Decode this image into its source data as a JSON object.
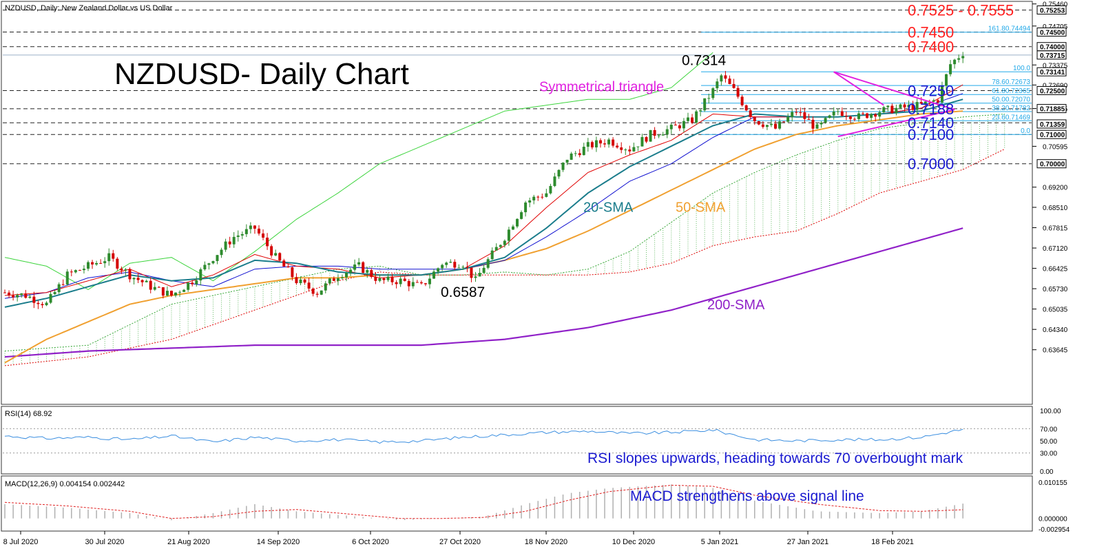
{
  "header": {
    "symbol_info": "NZDUSD, Daily:  New Zealand Dollar vs US Dollar",
    "chart_title": "NZDUSD- Daily Chart"
  },
  "colors": {
    "bull": "#2e8b2e",
    "bear": "#d40000",
    "sma20": "#1b7d8c",
    "sma50": "#f0a030",
    "sma200": "#9021c8",
    "tenkan": "#e00000",
    "kijun": "#1010d0",
    "chikou": "#3cd43c",
    "cloud": "#3aa83a",
    "triangle": "#e020e0",
    "fib": "#20a8e8",
    "level_red": "#ff2020",
    "level_blue": "#1a1ad0",
    "rsi": "#3a8ee0",
    "macd_hist": "#b0b0b0",
    "macd_signal": "#e02020"
  },
  "chart_data": {
    "type": "candlestick",
    "price_axis": {
      "min": 0.6185,
      "max": 0.755,
      "ticks": [
        "0.75460",
        "0.74705",
        "0.73375",
        "0.72690",
        "0.71885",
        "0.70595",
        "0.69200",
        "0.68510",
        "0.67815",
        "0.67120",
        "0.66425",
        "0.65730",
        "0.65035",
        "0.64340",
        "0.63645"
      ],
      "badges": [
        "0.75253",
        "0.74500",
        "0.74000",
        "0.73715",
        "0.73141",
        "0.72500",
        "0.71885",
        "0.71359",
        "0.71000",
        "0.70000"
      ]
    },
    "dates": [
      "8 Jul 2020",
      "30 Jul 2020",
      "21 Aug 2020",
      "14 Sep 2020",
      "6 Oct 2020",
      "27 Oct 2020",
      "18 Nov 2020",
      "10 Dec 2020",
      "5 Jan 2021",
      "27 Jan 2021",
      "18 Feb 2021"
    ],
    "levels": [
      {
        "value": 0.7525,
        "label": "0.7525 - 0.7555",
        "color": "red"
      },
      {
        "value": 0.745,
        "label": "0.7450",
        "color": "red"
      },
      {
        "value": 0.74,
        "label": "0.7400",
        "color": "red"
      },
      {
        "value": 0.725,
        "label": "0.7250",
        "color": "blue"
      },
      {
        "value": 0.7188,
        "label": "0.7188",
        "color": "blue"
      },
      {
        "value": 0.714,
        "label": "0.7140",
        "color": "blue"
      },
      {
        "value": 0.71,
        "label": "0.7100",
        "color": "blue"
      },
      {
        "value": 0.7,
        "label": "0.7000",
        "color": "blue"
      }
    ],
    "fibonacci": [
      {
        "value": 0.74494,
        "label": "161.80.74494"
      },
      {
        "value": 0.73141,
        "label": "100.0"
      },
      {
        "value": 0.72673,
        "label": "78.60.72673"
      },
      {
        "value": 0.72365,
        "label": "61.80.72365"
      },
      {
        "value": 0.7207,
        "label": "50.00.72070"
      },
      {
        "value": 0.71782,
        "label": "38.20.71782"
      },
      {
        "value": 0.71469,
        "label": "23.60.71469"
      },
      {
        "value": 0.71,
        "label": "0.0"
      }
    ],
    "annotations": {
      "high": "0.7314",
      "low": "0.6587",
      "triangle": "Symmetrical triangle",
      "sma20": "20-SMA",
      "sma50": "50-SMA",
      "sma200": "200-SMA"
    },
    "series_anchors": {
      "close": [
        [
          0,
          0.656
        ],
        [
          5,
          0.655
        ],
        [
          10,
          0.652
        ],
        [
          15,
          0.662
        ],
        [
          20,
          0.665
        ],
        [
          25,
          0.668
        ],
        [
          30,
          0.662
        ],
        [
          35,
          0.658
        ],
        [
          40,
          0.655
        ],
        [
          45,
          0.66
        ],
        [
          50,
          0.668
        ],
        [
          55,
          0.675
        ],
        [
          60,
          0.678
        ],
        [
          65,
          0.668
        ],
        [
          70,
          0.66
        ],
        [
          75,
          0.656
        ],
        [
          80,
          0.662
        ],
        [
          85,
          0.665
        ],
        [
          90,
          0.66
        ],
        [
          95,
          0.66
        ],
        [
          100,
          0.658
        ],
        [
          105,
          0.666
        ],
        [
          110,
          0.666
        ],
        [
          113,
          0.66
        ],
        [
          115,
          0.665
        ],
        [
          120,
          0.675
        ],
        [
          125,
          0.687
        ],
        [
          130,
          0.69
        ],
        [
          135,
          0.702
        ],
        [
          140,
          0.706
        ],
        [
          145,
          0.708
        ],
        [
          150,
          0.705
        ],
        [
          155,
          0.71
        ],
        [
          160,
          0.712
        ],
        [
          165,
          0.715
        ],
        [
          170,
          0.725
        ],
        [
          172,
          0.73
        ],
        [
          175,
          0.725
        ],
        [
          180,
          0.715
        ],
        [
          185,
          0.712
        ],
        [
          190,
          0.718
        ],
        [
          195,
          0.712
        ],
        [
          200,
          0.718
        ],
        [
          205,
          0.716
        ],
        [
          210,
          0.718
        ],
        [
          215,
          0.719
        ],
        [
          220,
          0.72
        ],
        [
          224,
          0.722
        ],
        [
          227,
          0.734
        ],
        [
          230,
          0.738
        ]
      ],
      "sma20": [
        [
          0,
          0.651
        ],
        [
          10,
          0.654
        ],
        [
          20,
          0.658
        ],
        [
          30,
          0.662
        ],
        [
          40,
          0.66
        ],
        [
          50,
          0.661
        ],
        [
          60,
          0.667
        ],
        [
          70,
          0.666
        ],
        [
          80,
          0.663
        ],
        [
          90,
          0.662
        ],
        [
          100,
          0.662
        ],
        [
          110,
          0.664
        ],
        [
          120,
          0.668
        ],
        [
          130,
          0.678
        ],
        [
          140,
          0.69
        ],
        [
          150,
          0.699
        ],
        [
          160,
          0.706
        ],
        [
          170,
          0.713
        ],
        [
          180,
          0.717
        ],
        [
          190,
          0.716
        ],
        [
          200,
          0.716
        ],
        [
          210,
          0.717
        ],
        [
          220,
          0.718
        ],
        [
          230,
          0.722
        ]
      ],
      "sma50": [
        [
          0,
          0.632
        ],
        [
          10,
          0.64
        ],
        [
          20,
          0.646
        ],
        [
          30,
          0.652
        ],
        [
          40,
          0.655
        ],
        [
          50,
          0.657
        ],
        [
          60,
          0.659
        ],
        [
          70,
          0.661
        ],
        [
          80,
          0.661
        ],
        [
          90,
          0.662
        ],
        [
          100,
          0.662
        ],
        [
          110,
          0.664
        ],
        [
          120,
          0.667
        ],
        [
          130,
          0.671
        ],
        [
          140,
          0.677
        ],
        [
          150,
          0.684
        ],
        [
          160,
          0.691
        ],
        [
          170,
          0.698
        ],
        [
          180,
          0.705
        ],
        [
          190,
          0.71
        ],
        [
          200,
          0.713
        ],
        [
          210,
          0.715
        ],
        [
          220,
          0.717
        ],
        [
          230,
          0.718
        ]
      ],
      "sma200": [
        [
          0,
          0.634
        ],
        [
          20,
          0.636
        ],
        [
          40,
          0.637
        ],
        [
          60,
          0.638
        ],
        [
          80,
          0.638
        ],
        [
          100,
          0.638
        ],
        [
          110,
          0.639
        ],
        [
          120,
          0.64
        ],
        [
          130,
          0.642
        ],
        [
          140,
          0.644
        ],
        [
          150,
          0.647
        ],
        [
          160,
          0.65
        ],
        [
          170,
          0.654
        ],
        [
          180,
          0.658
        ],
        [
          190,
          0.662
        ],
        [
          200,
          0.666
        ],
        [
          210,
          0.67
        ],
        [
          220,
          0.674
        ],
        [
          230,
          0.678
        ]
      ],
      "tenkan": [
        [
          0,
          0.655
        ],
        [
          10,
          0.656
        ],
        [
          20,
          0.66
        ],
        [
          30,
          0.664
        ],
        [
          40,
          0.658
        ],
        [
          50,
          0.662
        ],
        [
          60,
          0.669
        ],
        [
          70,
          0.665
        ],
        [
          80,
          0.664
        ],
        [
          90,
          0.661
        ],
        [
          100,
          0.662
        ],
        [
          110,
          0.664
        ],
        [
          120,
          0.672
        ],
        [
          130,
          0.685
        ],
        [
          140,
          0.697
        ],
        [
          150,
          0.703
        ],
        [
          160,
          0.708
        ],
        [
          170,
          0.717
        ],
        [
          180,
          0.716
        ],
        [
          190,
          0.716
        ],
        [
          200,
          0.716
        ],
        [
          210,
          0.717
        ],
        [
          220,
          0.719
        ],
        [
          230,
          0.727
        ]
      ],
      "kijun": [
        [
          0,
          0.654
        ],
        [
          10,
          0.656
        ],
        [
          20,
          0.661
        ],
        [
          30,
          0.663
        ],
        [
          40,
          0.66
        ],
        [
          50,
          0.658
        ],
        [
          60,
          0.664
        ],
        [
          70,
          0.665
        ],
        [
          80,
          0.665
        ],
        [
          90,
          0.664
        ],
        [
          100,
          0.664
        ],
        [
          110,
          0.664
        ],
        [
          120,
          0.667
        ],
        [
          130,
          0.675
        ],
        [
          140,
          0.684
        ],
        [
          150,
          0.694
        ],
        [
          160,
          0.7
        ],
        [
          170,
          0.709
        ],
        [
          180,
          0.716
        ],
        [
          190,
          0.716
        ],
        [
          200,
          0.716
        ],
        [
          210,
          0.717
        ],
        [
          220,
          0.719
        ],
        [
          230,
          0.724
        ]
      ],
      "chikou": [
        [
          0,
          0.668
        ],
        [
          10,
          0.665
        ],
        [
          20,
          0.657
        ],
        [
          30,
          0.666
        ],
        [
          40,
          0.668
        ],
        [
          50,
          0.66
        ],
        [
          60,
          0.67
        ],
        [
          70,
          0.681
        ],
        [
          80,
          0.69
        ],
        [
          90,
          0.7
        ],
        [
          100,
          0.706
        ],
        [
          110,
          0.712
        ],
        [
          120,
          0.718
        ],
        [
          130,
          0.72
        ],
        [
          140,
          0.722
        ],
        [
          150,
          0.722
        ],
        [
          160,
          0.726
        ],
        [
          170,
          0.738
        ]
      ],
      "cloud_top": [
        [
          0,
          0.636
        ],
        [
          20,
          0.638
        ],
        [
          40,
          0.652
        ],
        [
          60,
          0.658
        ],
        [
          80,
          0.664
        ],
        [
          90,
          0.665
        ],
        [
          100,
          0.662
        ],
        [
          110,
          0.662
        ],
        [
          120,
          0.663
        ],
        [
          130,
          0.662
        ],
        [
          140,
          0.664
        ],
        [
          150,
          0.67
        ],
        [
          160,
          0.68
        ],
        [
          170,
          0.69
        ],
        [
          180,
          0.697
        ],
        [
          190,
          0.703
        ],
        [
          200,
          0.708
        ],
        [
          210,
          0.712
        ],
        [
          220,
          0.714
        ],
        [
          230,
          0.716
        ],
        [
          240,
          0.717
        ]
      ],
      "cloud_bottom": [
        [
          0,
          0.631
        ],
        [
          20,
          0.634
        ],
        [
          40,
          0.64
        ],
        [
          60,
          0.65
        ],
        [
          80,
          0.66
        ],
        [
          90,
          0.663
        ],
        [
          100,
          0.662
        ],
        [
          110,
          0.662
        ],
        [
          120,
          0.662
        ],
        [
          130,
          0.662
        ],
        [
          140,
          0.662
        ],
        [
          150,
          0.663
        ],
        [
          160,
          0.666
        ],
        [
          170,
          0.672
        ],
        [
          180,
          0.675
        ],
        [
          190,
          0.677
        ],
        [
          200,
          0.683
        ],
        [
          210,
          0.69
        ],
        [
          220,
          0.694
        ],
        [
          230,
          0.698
        ],
        [
          240,
          0.705
        ]
      ]
    },
    "rsi": {
      "label": "RSI(14) 68.92",
      "ticks": [
        "100.00",
        "70.00",
        "50.00",
        "30.00",
        "0.00"
      ],
      "levels": [
        70,
        30
      ],
      "series": [
        [
          0,
          58
        ],
        [
          10,
          54
        ],
        [
          20,
          56
        ],
        [
          30,
          52
        ],
        [
          40,
          58
        ],
        [
          50,
          48
        ],
        [
          60,
          56
        ],
        [
          70,
          50
        ],
        [
          80,
          52
        ],
        [
          90,
          48
        ],
        [
          100,
          50
        ],
        [
          110,
          56
        ],
        [
          120,
          60
        ],
        [
          130,
          64
        ],
        [
          140,
          66
        ],
        [
          150,
          62
        ],
        [
          160,
          64
        ],
        [
          170,
          68
        ],
        [
          175,
          60
        ],
        [
          180,
          52
        ],
        [
          190,
          50
        ],
        [
          200,
          52
        ],
        [
          210,
          52
        ],
        [
          220,
          56
        ],
        [
          230,
          68.92
        ]
      ],
      "annotation": "RSI slopes upwards, heading towards 70 overbought mark"
    },
    "macd": {
      "label": "MACD(12,26,9) 0.004154 0.002442",
      "ticks": [
        "0.010155",
        "0.000000",
        "-0.002954"
      ],
      "min": -0.002954,
      "max": 0.010155,
      "hist": [
        [
          0,
          0.004
        ],
        [
          15,
          0.003
        ],
        [
          30,
          0.0015
        ],
        [
          40,
          -0.0005
        ],
        [
          50,
          0.0015
        ],
        [
          60,
          0.004
        ],
        [
          70,
          0.002
        ],
        [
          80,
          0.001
        ],
        [
          95,
          -0.0005
        ],
        [
          105,
          0.0
        ],
        [
          115,
          0.0005
        ],
        [
          125,
          0.004
        ],
        [
          135,
          0.007
        ],
        [
          145,
          0.0085
        ],
        [
          160,
          0.0095
        ],
        [
          170,
          0.0085
        ],
        [
          180,
          0.005
        ],
        [
          195,
          0.002
        ],
        [
          210,
          0.0015
        ],
        [
          220,
          0.002
        ],
        [
          230,
          0.004154
        ]
      ],
      "signal": [
        [
          0,
          0.0045
        ],
        [
          15,
          0.0035
        ],
        [
          30,
          0.002
        ],
        [
          40,
          0.0
        ],
        [
          50,
          0.0005
        ],
        [
          60,
          0.002
        ],
        [
          70,
          0.0025
        ],
        [
          80,
          0.0015
        ],
        [
          95,
          0.0
        ],
        [
          105,
          0.0
        ],
        [
          115,
          0.0003
        ],
        [
          125,
          0.002
        ],
        [
          135,
          0.005
        ],
        [
          145,
          0.0075
        ],
        [
          160,
          0.0093
        ],
        [
          170,
          0.009
        ],
        [
          180,
          0.0065
        ],
        [
          195,
          0.004
        ],
        [
          210,
          0.0022
        ],
        [
          220,
          0.002
        ],
        [
          230,
          0.002442
        ]
      ],
      "annotation": "MACD strengthens above signal line"
    }
  }
}
